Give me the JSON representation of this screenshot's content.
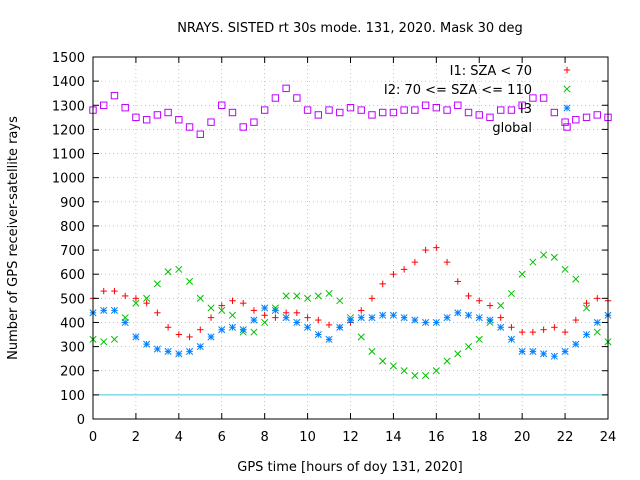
{
  "chart_data": {
    "type": "scatter",
    "title": "NRAYS. SISTED rt 30s mode. 131, 2020. Mask 30 deg",
    "xlabel": "GPS time [hours of doy 131, 2020]",
    "ylabel": "Number of GPS receiver-satellite rays",
    "xlim": [
      0,
      24
    ],
    "ylim": [
      0,
      1500
    ],
    "x_ticks": [
      0,
      2,
      4,
      6,
      8,
      10,
      12,
      14,
      16,
      18,
      20,
      22,
      24
    ],
    "y_ticks": [
      0,
      100,
      200,
      300,
      400,
      500,
      600,
      700,
      800,
      900,
      1000,
      1100,
      1200,
      1300,
      1400,
      1500
    ],
    "grid": true,
    "legend_position": "top-right",
    "reference_line": {
      "y": 100,
      "color": "#40c8e0"
    },
    "series": [
      {
        "name": "I1: SZA < 70",
        "marker": "+",
        "color": "#ff0000",
        "x": [
          0,
          0.5,
          1,
          1.5,
          2,
          2.5,
          3,
          3.5,
          4,
          4.5,
          5,
          5.5,
          6,
          6.5,
          7,
          7.5,
          8,
          8.5,
          9,
          9.5,
          10,
          10.5,
          11,
          11.5,
          12,
          12.5,
          13,
          13.5,
          14,
          14.5,
          15,
          15.5,
          16,
          16.5,
          17,
          17.5,
          18,
          18.5,
          19,
          19.5,
          20,
          20.5,
          21,
          21.5,
          22,
          22.5,
          23,
          23.5,
          24
        ],
        "values": [
          500,
          530,
          530,
          510,
          500,
          480,
          440,
          380,
          350,
          340,
          370,
          420,
          470,
          490,
          480,
          450,
          430,
          420,
          440,
          440,
          420,
          410,
          390,
          380,
          400,
          450,
          500,
          560,
          600,
          620,
          650,
          700,
          710,
          650,
          570,
          510,
          490,
          470,
          420,
          380,
          360,
          360,
          370,
          380,
          360,
          410,
          480,
          500,
          490
        ]
      },
      {
        "name": "I2: 70 <= SZA <= 110",
        "marker": "x",
        "color": "#00c000",
        "x": [
          0,
          0.5,
          1,
          1.5,
          2,
          2.5,
          3,
          3.5,
          4,
          4.5,
          5,
          5.5,
          6,
          6.5,
          7,
          7.5,
          8,
          8.5,
          9,
          9.5,
          10,
          10.5,
          11,
          11.5,
          12,
          12.5,
          13,
          13.5,
          14,
          14.5,
          15,
          15.5,
          16,
          16.5,
          17,
          17.5,
          18,
          18.5,
          19,
          19.5,
          20,
          20.5,
          21,
          21.5,
          22,
          22.5,
          23,
          23.5,
          24
        ],
        "values": [
          330,
          320,
          330,
          420,
          480,
          500,
          560,
          610,
          620,
          570,
          500,
          460,
          450,
          430,
          360,
          360,
          400,
          460,
          510,
          510,
          500,
          510,
          520,
          490,
          420,
          340,
          280,
          240,
          220,
          200,
          180,
          180,
          200,
          240,
          270,
          300,
          330,
          400,
          470,
          520,
          600,
          650,
          680,
          670,
          620,
          580,
          460,
          360,
          320
        ]
      },
      {
        "name": "I3",
        "marker": "*",
        "color": "#0080ff",
        "x": [
          0,
          0.5,
          1,
          1.5,
          2,
          2.5,
          3,
          3.5,
          4,
          4.5,
          5,
          5.5,
          6,
          6.5,
          7,
          7.5,
          8,
          8.5,
          9,
          9.5,
          10,
          10.5,
          11,
          11.5,
          12,
          12.5,
          13,
          13.5,
          14,
          14.5,
          15,
          15.5,
          16,
          16.5,
          17,
          17.5,
          18,
          18.5,
          19,
          19.5,
          20,
          20.5,
          21,
          21.5,
          22,
          22.5,
          23,
          23.5,
          24
        ],
        "values": [
          440,
          450,
          450,
          400,
          340,
          310,
          290,
          280,
          270,
          280,
          300,
          340,
          370,
          380,
          370,
          410,
          460,
          450,
          420,
          400,
          380,
          350,
          330,
          380,
          410,
          420,
          420,
          430,
          430,
          420,
          410,
          400,
          400,
          420,
          440,
          430,
          420,
          410,
          380,
          330,
          280,
          280,
          270,
          260,
          280,
          310,
          350,
          400,
          430
        ]
      },
      {
        "name": "global",
        "marker": "square",
        "color": "#bf00ff",
        "x": [
          0,
          0.5,
          1,
          1.5,
          2,
          2.5,
          3,
          3.5,
          4,
          4.5,
          5,
          5.5,
          6,
          6.5,
          7,
          7.5,
          8,
          8.5,
          9,
          9.5,
          10,
          10.5,
          11,
          11.5,
          12,
          12.5,
          13,
          13.5,
          14,
          14.5,
          15,
          15.5,
          16,
          16.5,
          17,
          17.5,
          18,
          18.5,
          19,
          19.5,
          20,
          20.5,
          21,
          21.5,
          22,
          22.5,
          23,
          23.5,
          24
        ],
        "values": [
          1280,
          1300,
          1340,
          1290,
          1250,
          1240,
          1260,
          1270,
          1240,
          1210,
          1180,
          1230,
          1300,
          1270,
          1210,
          1230,
          1280,
          1330,
          1370,
          1330,
          1280,
          1260,
          1280,
          1270,
          1290,
          1280,
          1260,
          1270,
          1270,
          1280,
          1280,
          1300,
          1290,
          1280,
          1300,
          1270,
          1260,
          1250,
          1280,
          1280,
          1300,
          1330,
          1330,
          1270,
          1230,
          1240,
          1250,
          1260,
          1250
        ]
      }
    ]
  }
}
